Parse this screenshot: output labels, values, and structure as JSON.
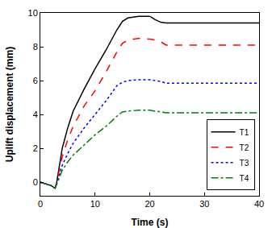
{
  "chart_data": {
    "type": "line",
    "x_label": "Time (s)",
    "y_label": "Uplift displacement (mm)",
    "x": [
      0,
      1,
      2,
      2.7,
      3,
      4,
      5,
      6,
      8,
      10,
      12,
      14,
      15,
      16,
      18,
      20,
      21,
      22,
      23,
      25,
      30,
      40
    ],
    "series": [
      {
        "name": "T1",
        "color": "#000000",
        "line_style": "solid",
        "values": [
          0,
          -0.1,
          -0.2,
          -0.35,
          0,
          2,
          3.2,
          4.2,
          5.5,
          6.7,
          7.8,
          9.0,
          9.5,
          9.7,
          9.8,
          9.8,
          9.6,
          9.45,
          9.4,
          9.4,
          9.4,
          9.4
        ]
      },
      {
        "name": "T2",
        "color": "#ff0000",
        "line_style": "dash",
        "values": [
          0,
          -0.1,
          -0.2,
          -0.35,
          0,
          1.5,
          2.5,
          3.3,
          4.5,
          5.4,
          6.5,
          7.7,
          8.2,
          8.4,
          8.5,
          8.45,
          8.4,
          8.3,
          8.1,
          8.1,
          8.1,
          8.1
        ]
      },
      {
        "name": "T3",
        "color": "#0000ff",
        "line_style": "dot",
        "values": [
          0,
          -0.1,
          -0.2,
          -0.35,
          -0.1,
          1.0,
          1.7,
          2.3,
          3.2,
          4.0,
          4.8,
          5.7,
          5.9,
          6.0,
          6.05,
          6.05,
          6.0,
          5.95,
          5.85,
          5.85,
          5.85,
          5.85
        ]
      },
      {
        "name": "T4",
        "color": "#008000",
        "line_style": "dashdot",
        "values": [
          0,
          -0.1,
          -0.2,
          -0.35,
          -0.1,
          0.7,
          1.2,
          1.6,
          2.2,
          2.8,
          3.3,
          3.9,
          4.15,
          4.2,
          4.25,
          4.25,
          4.2,
          4.15,
          4.1,
          4.1,
          4.1,
          4.1
        ]
      }
    ],
    "xlim": [
      0,
      40
    ],
    "xticks": [
      0,
      10,
      20,
      30,
      40
    ],
    "ylim": [
      -0.8,
      10
    ],
    "yticks": [
      0,
      2,
      4,
      6,
      8,
      10
    ],
    "grid": false,
    "legend": "bottom right"
  }
}
